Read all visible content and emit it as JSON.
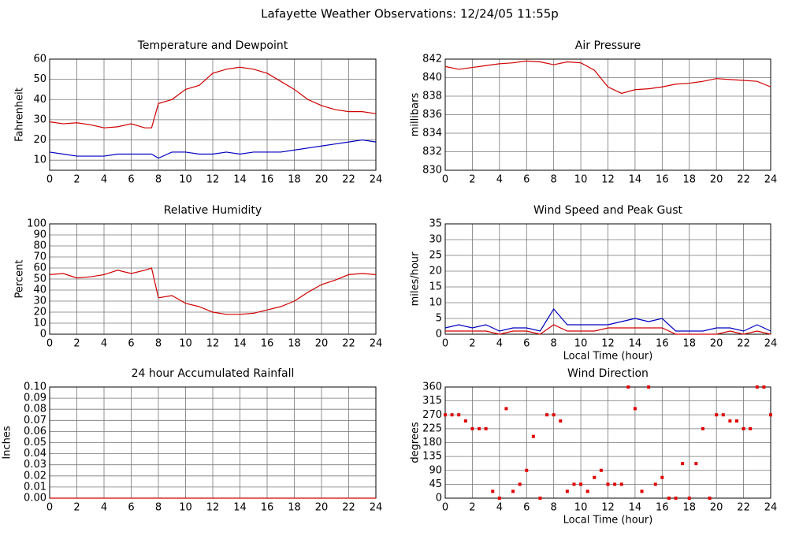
{
  "title": "Lafayette Weather Observations: 12/24/05 11:55p",
  "chart_data": [
    {
      "type": "line",
      "title": "Temperature and Dewpoint",
      "ylabel": "Fahrenheit",
      "x": [
        0,
        1,
        2,
        3,
        4,
        5,
        6,
        7,
        7.5,
        8,
        9,
        10,
        11,
        12,
        13,
        14,
        15,
        16,
        17,
        18,
        19,
        20,
        21,
        22,
        23,
        24
      ],
      "series": [
        {
          "color": "#d00000",
          "values": [
            29,
            28,
            28.5,
            27.5,
            26,
            26.5,
            28,
            26,
            26,
            38,
            40,
            45,
            47,
            53,
            55,
            56,
            55,
            53,
            49,
            45,
            40,
            37,
            35,
            34,
            34,
            33
          ]
        },
        {
          "color": "#0000c0",
          "values": [
            14,
            13,
            12,
            12,
            12,
            13,
            13,
            13,
            13,
            11,
            14,
            14,
            13,
            13,
            14,
            13,
            14,
            14,
            14,
            15,
            16,
            17,
            18,
            19,
            20,
            19
          ]
        }
      ],
      "xlim": [
        0,
        24
      ],
      "ylim": [
        5,
        60
      ],
      "xticks": [
        0,
        2,
        4,
        6,
        8,
        10,
        12,
        14,
        16,
        18,
        20,
        22,
        24
      ],
      "yticks": [
        10,
        20,
        30,
        40,
        50,
        60
      ],
      "grid": true
    },
    {
      "type": "line",
      "title": "Air Pressure",
      "ylabel": "millibars",
      "x": [
        0,
        1,
        2,
        3,
        4,
        5,
        6,
        7,
        8,
        9,
        10,
        11,
        12,
        13,
        14,
        15,
        16,
        17,
        18,
        19,
        20,
        21,
        22,
        23,
        24
      ],
      "series": [
        {
          "color": "#d00000",
          "values": [
            841.2,
            840.9,
            841.1,
            841.3,
            841.5,
            841.6,
            841.8,
            841.7,
            841.4,
            841.7,
            841.6,
            840.8,
            839.0,
            838.3,
            838.7,
            838.8,
            839.0,
            839.3,
            839.4,
            839.6,
            839.9,
            839.8,
            839.7,
            839.6,
            839.0
          ]
        }
      ],
      "xlim": [
        0,
        24
      ],
      "ylim": [
        830,
        842
      ],
      "xticks": [
        0,
        2,
        4,
        6,
        8,
        10,
        12,
        14,
        16,
        18,
        20,
        22,
        24
      ],
      "yticks": [
        830,
        832,
        834,
        836,
        838,
        840,
        842
      ],
      "grid": true
    },
    {
      "type": "line",
      "title": "Relative Humidity",
      "ylabel": "Percent",
      "x": [
        0,
        1,
        2,
        3,
        4,
        5,
        6,
        7,
        7.5,
        8,
        9,
        10,
        11,
        12,
        13,
        14,
        15,
        16,
        17,
        18,
        19,
        20,
        21,
        22,
        23,
        24
      ],
      "series": [
        {
          "color": "#d00000",
          "values": [
            54,
            55,
            51,
            52,
            54,
            58,
            55,
            58,
            60,
            33,
            35,
            28,
            25,
            20,
            18,
            18,
            19,
            22,
            25,
            30,
            38,
            45,
            49,
            54,
            55,
            54
          ]
        }
      ],
      "xlim": [
        0,
        24
      ],
      "ylim": [
        0,
        100
      ],
      "xticks": [
        0,
        2,
        4,
        6,
        8,
        10,
        12,
        14,
        16,
        18,
        20,
        22,
        24
      ],
      "yticks": [
        0,
        10,
        20,
        30,
        40,
        50,
        60,
        70,
        80,
        90,
        100
      ],
      "grid": true
    },
    {
      "type": "line",
      "title": "Wind Speed and Peak Gust",
      "ylabel": "miles/hour",
      "xlabel": "Local Time (hour)",
      "x": [
        0,
        1,
        2,
        3,
        4,
        5,
        6,
        7,
        8,
        9,
        10,
        11,
        12,
        13,
        14,
        15,
        16,
        17,
        18,
        19,
        20,
        21,
        22,
        23,
        24
      ],
      "series": [
        {
          "color": "#0000c0",
          "values": [
            2,
            3,
            2,
            3,
            1,
            2,
            2,
            1,
            8,
            3,
            3,
            3,
            3,
            4,
            5,
            4,
            5,
            1,
            1,
            1,
            2,
            2,
            1,
            3,
            1
          ]
        },
        {
          "color": "#d00000",
          "values": [
            1,
            1,
            1,
            1,
            0,
            1,
            1,
            0,
            3,
            1,
            1,
            1,
            2,
            2,
            2,
            2,
            2,
            0,
            0,
            0,
            0,
            1,
            0,
            1,
            0
          ]
        }
      ],
      "xlim": [
        0,
        24
      ],
      "ylim": [
        0,
        35
      ],
      "xticks": [
        0,
        2,
        4,
        6,
        8,
        10,
        12,
        14,
        16,
        18,
        20,
        22,
        24
      ],
      "yticks": [
        0,
        5,
        10,
        15,
        20,
        25,
        30,
        35
      ],
      "grid": true
    },
    {
      "type": "line",
      "title": "24 hour Accumulated Rainfall",
      "ylabel": "Inches",
      "x": [
        0,
        24
      ],
      "series": [
        {
          "color": "#d00000",
          "values": [
            0,
            0
          ]
        }
      ],
      "xlim": [
        0,
        24
      ],
      "ylim": [
        0,
        0.1
      ],
      "xticks": [
        0,
        2,
        4,
        6,
        8,
        10,
        12,
        14,
        16,
        18,
        20,
        22,
        24
      ],
      "yticks": [
        {
          "value": 0,
          "label": "0.00"
        },
        {
          "value": 0.01,
          "label": "0.01"
        },
        {
          "value": 0.02,
          "label": "0.02"
        },
        {
          "value": 0.03,
          "label": "0.03"
        },
        {
          "value": 0.04,
          "label": "0.04"
        },
        {
          "value": 0.05,
          "label": "0.05"
        },
        {
          "value": 0.06,
          "label": "0.06"
        },
        {
          "value": 0.07,
          "label": "0.07"
        },
        {
          "value": 0.08,
          "label": "0.08"
        },
        {
          "value": 0.09,
          "label": "0.09"
        },
        {
          "value": 0.1,
          "label": "0.10"
        }
      ],
      "grid": true
    },
    {
      "type": "scatter",
      "title": "Wind Direction",
      "ylabel": "degrees",
      "xlabel": "Local Time (hour)",
      "x": [
        0,
        0.5,
        1,
        1.5,
        2,
        2.5,
        3,
        3.5,
        4,
        4.5,
        5,
        5.5,
        6,
        6.5,
        7,
        7.5,
        8,
        8.5,
        9,
        9.5,
        10,
        10.5,
        11,
        11.5,
        12,
        12.5,
        13,
        13.5,
        14,
        14.5,
        15,
        15.5,
        16,
        16.5,
        17,
        17.5,
        18,
        18.5,
        19,
        19.5,
        20,
        20.5,
        21,
        21.5,
        22,
        22.5,
        23,
        23.5,
        24
      ],
      "series": [
        {
          "color": "#e00000",
          "values": [
            270,
            270,
            270,
            250,
            225,
            225,
            225,
            22,
            0,
            290,
            22,
            45,
            90,
            200,
            0,
            270,
            270,
            250,
            22,
            45,
            45,
            22,
            67,
            90,
            45,
            45,
            45,
            360,
            290,
            22,
            360,
            45,
            67,
            0,
            0,
            112,
            0,
            112,
            225,
            0,
            270,
            270,
            250,
            250,
            225,
            225,
            360,
            360,
            270
          ]
        }
      ],
      "xlim": [
        0,
        24
      ],
      "ylim": [
        0,
        360
      ],
      "xticks": [
        0,
        2,
        4,
        6,
        8,
        10,
        12,
        14,
        16,
        18,
        20,
        22,
        24
      ],
      "yticks": [
        0,
        45,
        90,
        135,
        180,
        225,
        270,
        315,
        360
      ],
      "grid": true
    }
  ]
}
